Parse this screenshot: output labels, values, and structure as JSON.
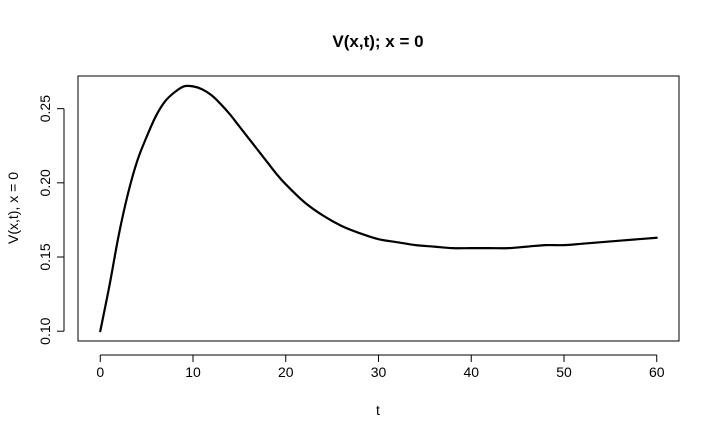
{
  "chart_data": {
    "type": "line",
    "title": "V(x,t); x = 0",
    "xlabel": "t",
    "ylabel": "V(x,t), x = 0",
    "xlim": [
      -2.4,
      62.4
    ],
    "ylim": [
      0.0934,
      0.272
    ],
    "xticks": [
      0,
      10,
      20,
      30,
      40,
      50,
      60
    ],
    "xtick_labels": [
      "0",
      "10",
      "20",
      "30",
      "40",
      "50",
      "60"
    ],
    "yticks": [
      0.1,
      0.15,
      0.2,
      0.25
    ],
    "ytick_labels": [
      "0.10",
      "0.15",
      "0.20",
      "0.25"
    ],
    "grid": false,
    "legend": "none",
    "series": [
      {
        "color": "#000000",
        "x": [
          0,
          1,
          2,
          3,
          4,
          5,
          6,
          7,
          8,
          9,
          10,
          11,
          12,
          13,
          14,
          15,
          16,
          17,
          18,
          19,
          20,
          22,
          24,
          26,
          28,
          30,
          32,
          34,
          36,
          38,
          40,
          42,
          44,
          46,
          48,
          50,
          52,
          54,
          56,
          58,
          60
        ],
        "y": [
          0.1,
          0.131,
          0.165,
          0.193,
          0.215,
          0.231,
          0.245,
          0.255,
          0.261,
          0.265,
          0.265,
          0.263,
          0.259,
          0.253,
          0.246,
          0.238,
          0.23,
          0.222,
          0.214,
          0.206,
          0.199,
          0.187,
          0.178,
          0.171,
          0.166,
          0.162,
          0.16,
          0.158,
          0.157,
          0.156,
          0.156,
          0.156,
          0.156,
          0.157,
          0.158,
          0.158,
          0.159,
          0.16,
          0.161,
          0.162,
          0.163
        ]
      }
    ]
  }
}
